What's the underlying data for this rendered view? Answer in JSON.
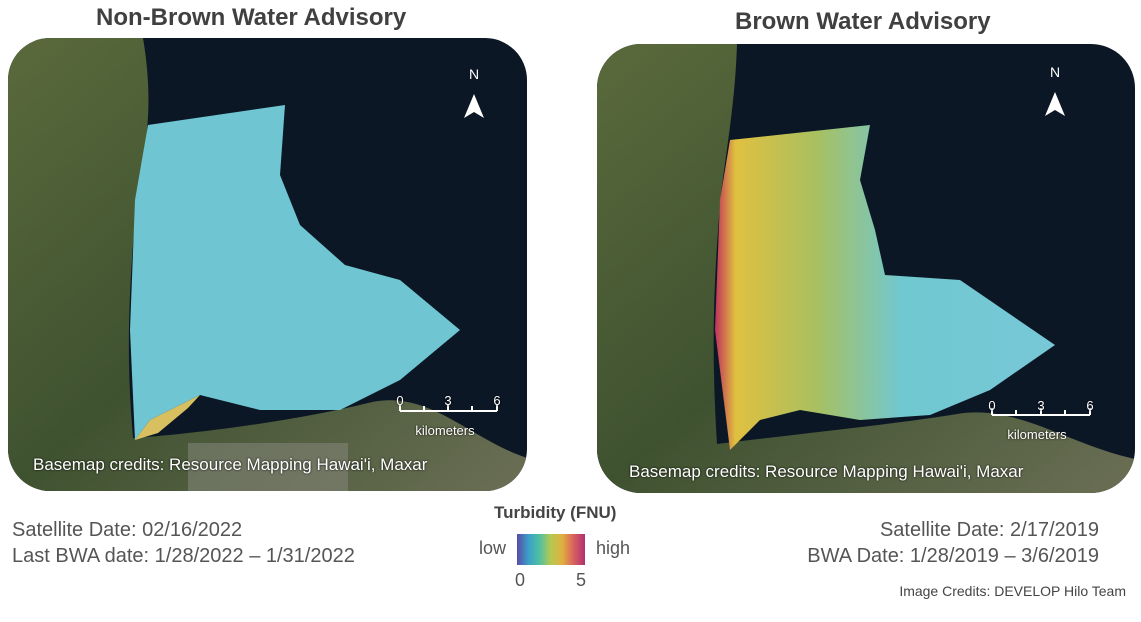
{
  "panels": [
    {
      "title": "Non-Brown Water Advisory",
      "north": "N",
      "scale": {
        "ticks": [
          0,
          3,
          6
        ],
        "unit": "kilometers"
      },
      "credits": "Basemap credits: Resource Mapping Hawai'i, Maxar",
      "info": [
        "Satellite Date: 02/16/2022",
        "Last BWA date: 1/28/2022 – 1/31/2022"
      ]
    },
    {
      "title": "Brown Water Advisory",
      "north": "N",
      "scale": {
        "ticks": [
          0,
          3,
          6
        ],
        "unit": "kilometers"
      },
      "credits": "Basemap credits: Resource Mapping Hawai'i, Maxar",
      "info": [
        "Satellite Date: 2/17/2019",
        "BWA Date: 1/28/2019 – 3/6/2019"
      ]
    }
  ],
  "legend": {
    "title": "Turbidity (FNU)",
    "low": "low",
    "high": "high",
    "min": 0,
    "max": 5
  },
  "image_credits": "Image Credits: DEVELOP Hilo Team"
}
